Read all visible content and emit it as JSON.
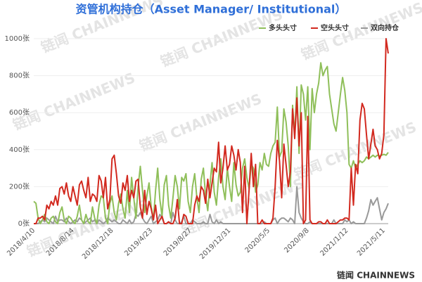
{
  "chart_data": {
    "type": "line",
    "title": "资管机构持仓（Asset Manager/ Institutional）",
    "watermark": "链闻 CHAINNEWS",
    "footer": "链闻 CHAINNEWS",
    "legend": "top-right",
    "grid": true,
    "ylim": [
      0,
      1000
    ],
    "yticks": [
      {
        "value": 0,
        "label": "0张"
      },
      {
        "value": 200,
        "label": "200张"
      },
      {
        "value": 400,
        "label": "400张"
      },
      {
        "value": 600,
        "label": "600张"
      },
      {
        "value": 800,
        "label": "800张"
      },
      {
        "value": 1000,
        "label": "1000张"
      }
    ],
    "categories": [
      "2018/4/10",
      null,
      null,
      null,
      null,
      null,
      null,
      null,
      null,
      null,
      null,
      null,
      null,
      null,
      null,
      null,
      null,
      null,
      "2018/8/14",
      null,
      null,
      null,
      null,
      null,
      null,
      null,
      null,
      null,
      null,
      null,
      null,
      null,
      null,
      null,
      null,
      null,
      "2018/12/18",
      null,
      null,
      null,
      null,
      null,
      null,
      null,
      null,
      null,
      null,
      null,
      null,
      null,
      null,
      null,
      null,
      null,
      "2019/4/23",
      null,
      null,
      null,
      null,
      null,
      null,
      null,
      null,
      null,
      null,
      null,
      null,
      null,
      null,
      null,
      null,
      null,
      "2019/8/27",
      null,
      null,
      null,
      null,
      null,
      null,
      null,
      null,
      null,
      null,
      null,
      null,
      null,
      null,
      null,
      null,
      null,
      "2019/12/31",
      null,
      null,
      null,
      null,
      null,
      null,
      null,
      null,
      null,
      null,
      null,
      null,
      null,
      null,
      null,
      null,
      null,
      "2020/5/5",
      null,
      null,
      null,
      null,
      null,
      null,
      null,
      null,
      null,
      null,
      null,
      null,
      null,
      null,
      null,
      null,
      null,
      "2020/9/8",
      null,
      null,
      null,
      null,
      null,
      null,
      null,
      null,
      null,
      null,
      null,
      null,
      null,
      null,
      null,
      null,
      null,
      "2021/1/12",
      null,
      null,
      null,
      null,
      null,
      null,
      null,
      null,
      null,
      null,
      null,
      null,
      null,
      null,
      null,
      null,
      "2021/5/11",
      null,
      null
    ],
    "series": [
      {
        "name": "多头头寸",
        "color": "#8fbf5a",
        "values": [
          120,
          110,
          30,
          0,
          20,
          50,
          10,
          0,
          30,
          40,
          10,
          0,
          60,
          90,
          20,
          0,
          40,
          30,
          10,
          0,
          40,
          100,
          20,
          0,
          50,
          10,
          0,
          90,
          30,
          0,
          100,
          150,
          140,
          30,
          0,
          110,
          150,
          60,
          20,
          110,
          160,
          80,
          30,
          180,
          60,
          250,
          140,
          30,
          200,
          310,
          180,
          60,
          150,
          220,
          90,
          20,
          180,
          300,
          130,
          40,
          210,
          260,
          100,
          30,
          140,
          260,
          200,
          80,
          250,
          230,
          270,
          120,
          60,
          200,
          270,
          140,
          60,
          240,
          300,
          150,
          70,
          210,
          330,
          170,
          100,
          250,
          350,
          200,
          130,
          300,
          200,
          120,
          330,
          210,
          150,
          170,
          300,
          350,
          250,
          190,
          320,
          300,
          170,
          210,
          330,
          290,
          380,
          320,
          310,
          380,
          420,
          440,
          630,
          360,
          390,
          620,
          550,
          420,
          200,
          640,
          480,
          740,
          380,
          750,
          700,
          560,
          740,
          400,
          730,
          600,
          700,
          760,
          870,
          800,
          830,
          850,
          700,
          620,
          540,
          500,
          600,
          700,
          790,
          720,
          600,
          320,
          300,
          340,
          300,
          320,
          340,
          330,
          340,
          360,
          350,
          360,
          370,
          360,
          370,
          365,
          370,
          375,
          370,
          385
        ]
      },
      {
        "name": "空头头寸",
        "color": "#d2291f",
        "values": [
          0,
          0,
          30,
          30,
          40,
          20,
          100,
          80,
          120,
          100,
          150,
          100,
          190,
          200,
          160,
          220,
          150,
          120,
          200,
          150,
          100,
          210,
          230,
          180,
          140,
          250,
          120,
          160,
          150,
          120,
          260,
          230,
          140,
          250,
          80,
          130,
          350,
          370,
          270,
          150,
          110,
          220,
          180,
          260,
          120,
          180,
          140,
          230,
          240,
          90,
          30,
          180,
          50,
          120,
          80,
          20,
          100,
          0,
          20,
          40,
          0,
          0,
          10,
          0,
          0,
          30,
          130,
          0,
          0,
          50,
          40,
          0,
          0,
          0,
          100,
          150,
          120,
          200,
          180,
          110,
          240,
          140,
          220,
          300,
          280,
          440,
          220,
          300,
          420,
          290,
          320,
          420,
          370,
          290,
          400,
          330,
          60,
          310,
          0,
          180,
          380,
          200,
          320,
          0,
          0,
          20,
          0,
          0,
          0,
          0,
          30,
          200,
          450,
          340,
          140,
          430,
          320,
          200,
          280,
          620,
          460,
          680,
          420,
          600,
          0,
          20,
          580,
          20,
          0,
          0,
          0,
          10,
          10,
          0,
          0,
          20,
          0,
          0,
          0,
          0,
          10,
          20,
          20,
          30,
          30,
          20,
          300,
          100,
          320,
          270,
          560,
          650,
          620,
          480,
          350,
          430,
          510,
          420,
          400,
          350,
          380,
          480,
          1000,
          920
        ]
      },
      {
        "name": "双向持仓",
        "color": "#999999",
        "values": [
          0,
          0,
          0,
          10,
          20,
          10,
          30,
          20,
          10,
          0,
          40,
          10,
          20,
          20,
          10,
          30,
          10,
          0,
          10,
          20,
          10,
          30,
          20,
          0,
          10,
          20,
          30,
          10,
          20,
          0,
          20,
          10,
          0,
          10,
          30,
          20,
          10,
          20,
          10,
          0,
          0,
          20,
          10,
          0,
          20,
          0,
          10,
          50,
          40,
          60,
          30,
          10,
          0,
          20,
          40,
          0,
          10,
          20,
          50,
          30,
          0,
          0,
          10,
          0,
          60,
          20,
          0,
          0,
          10,
          40,
          0,
          0,
          0,
          20,
          10,
          0,
          0,
          0,
          10,
          0,
          0,
          50,
          10,
          0,
          20,
          0,
          10,
          0,
          0,
          0,
          0,
          0,
          0,
          0,
          0,
          0,
          0,
          0,
          0,
          0,
          0,
          0,
          0,
          0,
          0,
          0,
          10,
          0,
          0,
          0,
          20,
          30,
          0,
          20,
          30,
          30,
          20,
          10,
          30,
          20,
          0,
          200,
          60,
          30,
          10,
          0,
          0,
          10,
          0,
          0,
          0,
          0,
          0,
          0,
          0,
          0,
          0,
          0,
          20,
          0,
          0,
          0,
          0,
          20,
          10,
          20,
          0,
          10,
          0,
          0,
          0,
          0,
          0,
          30,
          70,
          130,
          100,
          120,
          140,
          80,
          20,
          60,
          80,
          110
        ]
      }
    ]
  }
}
